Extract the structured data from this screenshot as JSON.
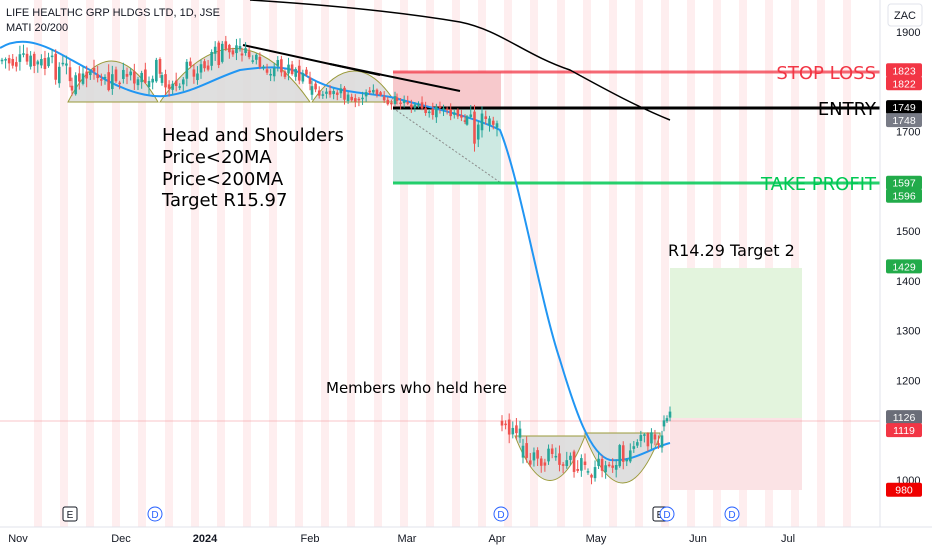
{
  "header": {
    "title": "LIFE HEALTHC GRP HLDGS LTD, 1D, JSE",
    "indicator": "MATI 20/200",
    "currency": "ZAC"
  },
  "colors": {
    "up": "#26a69a",
    "down": "#ef5350",
    "ma20": "#2196f3",
    "ma200": "#000000",
    "stop": "#f23645",
    "take": "#00c853",
    "entry": "#000000",
    "loss_zone": "#f7c9cc",
    "profit_zone": "#cde9e2",
    "target2_zone": "#e3f4dd",
    "pattern_fill": "#d9d9d9",
    "pattern_edge": "#9a9a3a"
  },
  "chart_data": {
    "type": "candlestick",
    "symbol": "LIFE HEALTHC GRP HLDGS LTD",
    "timeframe": "1D",
    "exchange": "JSE",
    "currency": "ZAC",
    "ylim": [
      950,
      1945
    ],
    "y_ticks": [
      1000,
      1100,
      1200,
      1300,
      1400,
      1500,
      1600,
      1700,
      1800,
      1900
    ],
    "x_ticks": [
      "Nov",
      "Dec",
      "2024",
      "Feb",
      "Mar",
      "Apr",
      "May",
      "Jun",
      "Jul"
    ],
    "price_labels": [
      {
        "value": 1823,
        "role": "stop"
      },
      {
        "value": 1822,
        "role": "stop"
      },
      {
        "value": 1749,
        "role": "entry-dark"
      },
      {
        "value": 1748,
        "role": "entry-grey"
      },
      {
        "value": 1597,
        "role": "take"
      },
      {
        "value": 1596,
        "role": "take"
      },
      {
        "value": 1429,
        "role": "take"
      },
      {
        "value": 1126,
        "role": "grey"
      },
      {
        "value": 1119,
        "role": "stop"
      },
      {
        "value": 980,
        "role": "red"
      }
    ],
    "levels": {
      "stop_loss": {
        "label": "STOP LOSS",
        "value": 1822
      },
      "entry": {
        "label": "ENTRY",
        "value": 1748
      },
      "take_profit": {
        "label": "TAKE PROFIT",
        "value": 1596
      }
    },
    "annotations": [
      "Head and Shoulders",
      "Price<20MA",
      "Price<200MA",
      "Target R15.97",
      "R14.29 Target 2",
      "Members who held here"
    ],
    "event_markers": [
      {
        "date": "2023-11-13",
        "symbol": "E"
      },
      {
        "date": "2023-12-05",
        "symbol": "D"
      },
      {
        "date": "2024-04-03",
        "symbol": "D"
      },
      {
        "date": "2024-05-22",
        "symbol": "E"
      },
      {
        "date": "2024-05-24",
        "symbol": "D"
      },
      {
        "date": "2024-06-12",
        "symbol": "D"
      }
    ]
  }
}
